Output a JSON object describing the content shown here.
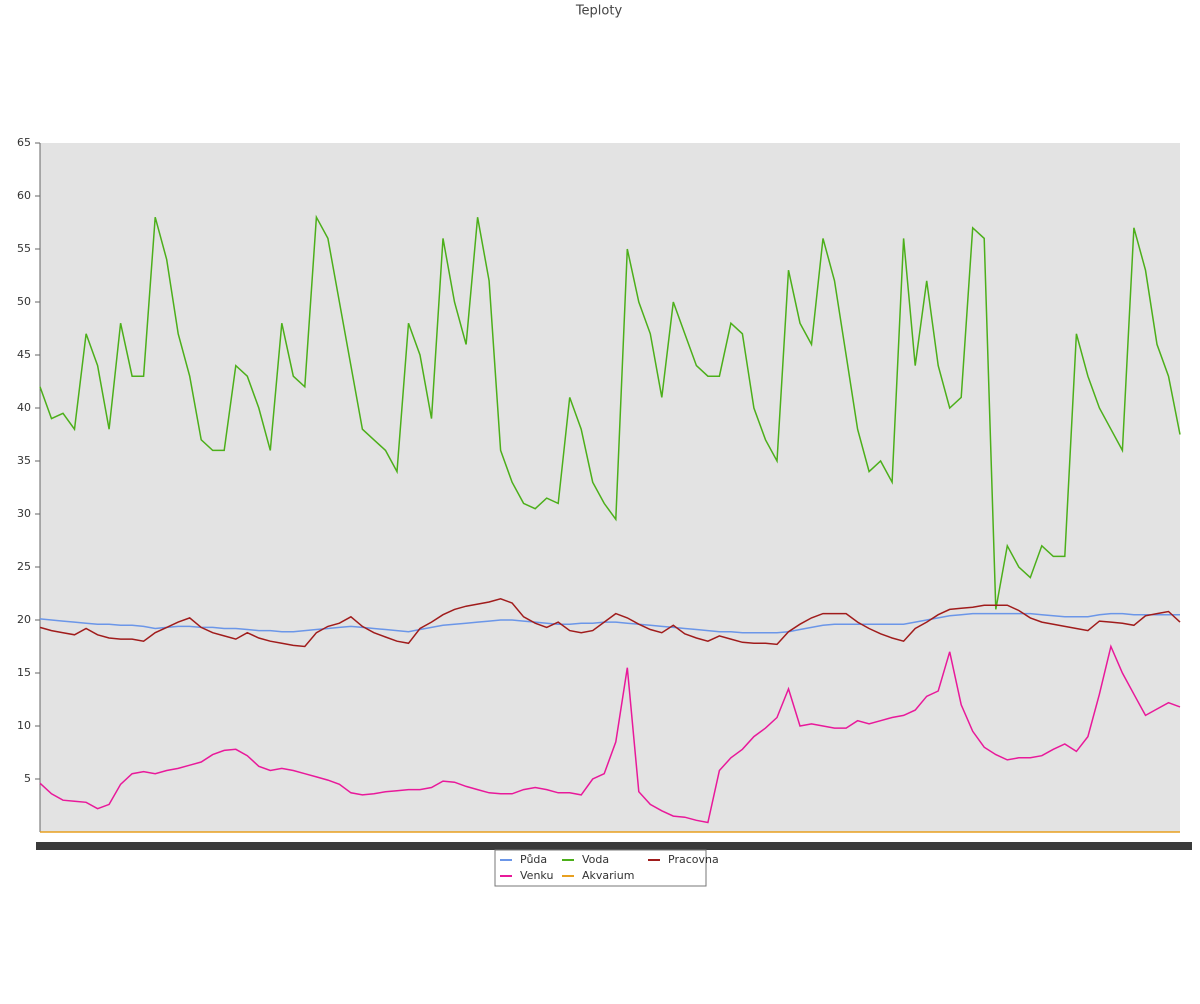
{
  "chart_data": {
    "type": "line",
    "title": "Teploty",
    "ylim": [
      0,
      65
    ],
    "yticks": [
      5,
      10,
      15,
      20,
      25,
      30,
      35,
      40,
      45,
      50,
      55,
      60,
      65
    ],
    "legend": "bottom",
    "series": [
      {
        "name": "Půda",
        "color": "#6b96e8",
        "values": [
          20.1,
          20,
          19.9,
          19.8,
          19.7,
          19.6,
          19.6,
          19.5,
          19.5,
          19.4,
          19.2,
          19.3,
          19.4,
          19.4,
          19.3,
          19.3,
          19.2,
          19.2,
          19.1,
          19.0,
          19.0,
          18.9,
          18.9,
          19.0,
          19.1,
          19.2,
          19.3,
          19.4,
          19.3,
          19.2,
          19.1,
          19.0,
          18.9,
          19.1,
          19.3,
          19.5,
          19.6,
          19.7,
          19.8,
          19.9,
          20.0,
          20.0,
          19.9,
          19.8,
          19.7,
          19.6,
          19.6,
          19.7,
          19.7,
          19.8,
          19.8,
          19.7,
          19.6,
          19.5,
          19.4,
          19.3,
          19.2,
          19.1,
          19.0,
          18.9,
          18.9,
          18.8,
          18.8,
          18.8,
          18.8,
          18.9,
          19.1,
          19.3,
          19.5,
          19.6,
          19.6,
          19.6,
          19.6,
          19.6,
          19.6,
          19.6,
          19.8,
          20.0,
          20.2,
          20.4,
          20.5,
          20.6,
          20.6,
          20.6,
          20.6,
          20.6,
          20.6,
          20.5,
          20.4,
          20.3,
          20.3,
          20.3,
          20.5,
          20.6,
          20.6,
          20.5,
          20.5,
          20.5,
          20.5,
          20.5
        ]
      },
      {
        "name": "Voda",
        "color": "#4caf1a",
        "values": [
          42,
          39,
          39.5,
          38,
          47,
          44,
          38,
          48,
          43,
          43,
          58,
          54,
          47,
          43,
          37,
          36,
          36,
          44,
          43,
          40,
          36,
          48,
          43,
          42,
          58,
          56,
          50,
          44,
          38,
          37,
          36,
          34,
          48,
          45,
          39,
          56,
          50,
          46,
          58,
          52,
          36,
          33,
          31,
          30.5,
          31.5,
          31,
          41,
          38,
          33,
          31,
          29.5,
          55,
          50,
          47,
          41,
          50,
          47,
          44,
          43,
          43,
          48,
          47,
          40,
          37,
          35,
          53,
          48,
          46,
          56,
          52,
          45,
          38,
          34,
          35,
          33,
          56,
          44,
          52,
          44,
          40,
          41,
          57,
          56,
          21,
          27,
          25,
          24,
          27,
          26,
          26,
          47,
          43,
          40,
          38,
          36,
          57,
          53,
          46,
          43,
          37.5
        ]
      },
      {
        "name": "Pracovna",
        "color": "#a01c1c",
        "values": [
          19.3,
          19,
          18.8,
          18.6,
          19.2,
          18.6,
          18.3,
          18.2,
          18.2,
          18,
          18.8,
          19.3,
          19.8,
          20.2,
          19.3,
          18.8,
          18.5,
          18.2,
          18.8,
          18.3,
          18,
          17.8,
          17.6,
          17.5,
          18.8,
          19.4,
          19.7,
          20.3,
          19.4,
          18.8,
          18.4,
          18,
          17.8,
          19.2,
          19.8,
          20.5,
          21,
          21.3,
          21.5,
          21.7,
          22,
          21.6,
          20.3,
          19.7,
          19.3,
          19.8,
          19,
          18.8,
          19,
          19.8,
          20.6,
          20.2,
          19.6,
          19.1,
          18.8,
          19.5,
          18.7,
          18.3,
          18,
          18.5,
          18.2,
          17.9,
          17.8,
          17.8,
          17.7,
          18.9,
          19.6,
          20.2,
          20.6,
          20.6,
          20.6,
          19.8,
          19.2,
          18.7,
          18.3,
          18,
          19.2,
          19.8,
          20.5,
          21,
          21.1,
          21.2,
          21.4,
          21.4,
          21.4,
          20.9,
          20.2,
          19.8,
          19.6,
          19.4,
          19.2,
          19,
          19.9,
          19.8,
          19.7,
          19.5,
          20.4,
          20.6,
          20.8,
          19.8
        ]
      },
      {
        "name": "Venku",
        "color": "#e8199a",
        "values": [
          4.6,
          3.6,
          3,
          2.9,
          2.8,
          2.2,
          2.6,
          4.5,
          5.5,
          5.7,
          5.5,
          5.8,
          6,
          6.3,
          6.6,
          7.3,
          7.7,
          7.8,
          7.2,
          6.2,
          5.8,
          6,
          5.8,
          5.5,
          5.2,
          4.9,
          4.5,
          3.7,
          3.5,
          3.6,
          3.8,
          3.9,
          4,
          4,
          4.2,
          4.8,
          4.7,
          4.3,
          4,
          3.7,
          3.6,
          3.6,
          4,
          4.2,
          4,
          3.7,
          3.7,
          3.5,
          5,
          5.5,
          8.5,
          15.5,
          3.8,
          2.6,
          2,
          1.5,
          1.4,
          1.1,
          0.9,
          5.8,
          7,
          7.8,
          9,
          9.8,
          10.8,
          13.5,
          10,
          10.2,
          10,
          9.8,
          9.8,
          10.5,
          10.2,
          10.5,
          10.8,
          11,
          11.5,
          12.8,
          13.3,
          17,
          12,
          9.5,
          8,
          7.3,
          6.8,
          7,
          7,
          7.2,
          7.8,
          8.3,
          7.6,
          9,
          13,
          17.5,
          15,
          13,
          11,
          11.6,
          12.2,
          11.8
        ]
      },
      {
        "name": "Akvarium",
        "color": "#e8a020",
        "values": [
          0,
          0,
          0,
          0,
          0,
          0,
          0,
          0,
          0,
          0,
          0,
          0,
          0,
          0,
          0,
          0,
          0,
          0,
          0,
          0,
          0,
          0,
          0,
          0,
          0,
          0,
          0,
          0,
          0,
          0,
          0,
          0,
          0,
          0,
          0,
          0,
          0,
          0,
          0,
          0,
          0,
          0,
          0,
          0,
          0,
          0,
          0,
          0,
          0,
          0,
          0,
          0,
          0,
          0,
          0,
          0,
          0,
          0,
          0,
          0,
          0,
          0,
          0,
          0,
          0,
          0,
          0,
          0,
          0,
          0,
          0,
          0,
          0,
          0,
          0,
          0,
          0,
          0,
          0,
          0,
          0,
          0,
          0,
          0,
          0,
          0,
          0,
          0,
          0,
          0,
          0,
          0,
          0,
          0,
          0,
          0,
          0,
          0,
          0,
          0
        ]
      }
    ]
  }
}
